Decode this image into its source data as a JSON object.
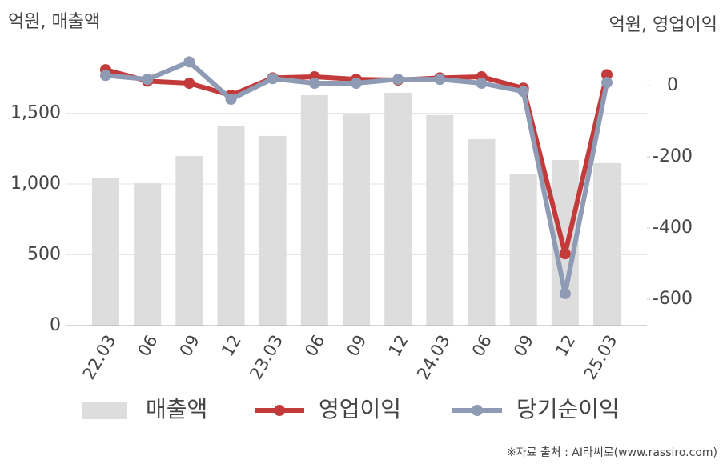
{
  "chart_data": {
    "type": "combo",
    "y_label": "억원, 매출액",
    "y2_label": "억원, 영업이익",
    "source": "※자료 출처 : AI라씨로(www.rassiro.com)",
    "categories": [
      "22.03",
      "06",
      "09",
      "12",
      "23.03",
      "06",
      "09",
      "12",
      "24.03",
      "06",
      "09",
      "12",
      "25.03"
    ],
    "series": [
      {
        "name": "매출액",
        "type": "bar",
        "color": "#dddddd",
        "values": [
          1040,
          1005,
          1198,
          1412,
          1339,
          1627,
          1497,
          1644,
          1486,
          1316,
          1068,
          1169,
          1147
        ]
      },
      {
        "name": "영업이익",
        "type": "line",
        "axis": "y2",
        "color": "#c23a3a",
        "values": [
          45,
          13,
          7,
          -27,
          22,
          25,
          18,
          16,
          22,
          25,
          -7,
          -472,
          31
        ]
      },
      {
        "name": "당기순이익",
        "type": "line",
        "axis": "y2",
        "color": "#8f9bb5",
        "values": [
          29,
          18,
          67,
          -38,
          20,
          7,
          7,
          18,
          18,
          7,
          -16,
          -584,
          9
        ]
      }
    ],
    "ylim": [
      0,
      1960
    ],
    "yticks": [
      0,
      500,
      {
        "value": 1000,
        "label": "1,000"
      },
      {
        "value": 1500,
        "label": "1,500"
      }
    ],
    "y2lim": [
      -674,
      106
    ],
    "y2ticks": [
      -600,
      -400,
      -200,
      0
    ],
    "grid": true
  }
}
